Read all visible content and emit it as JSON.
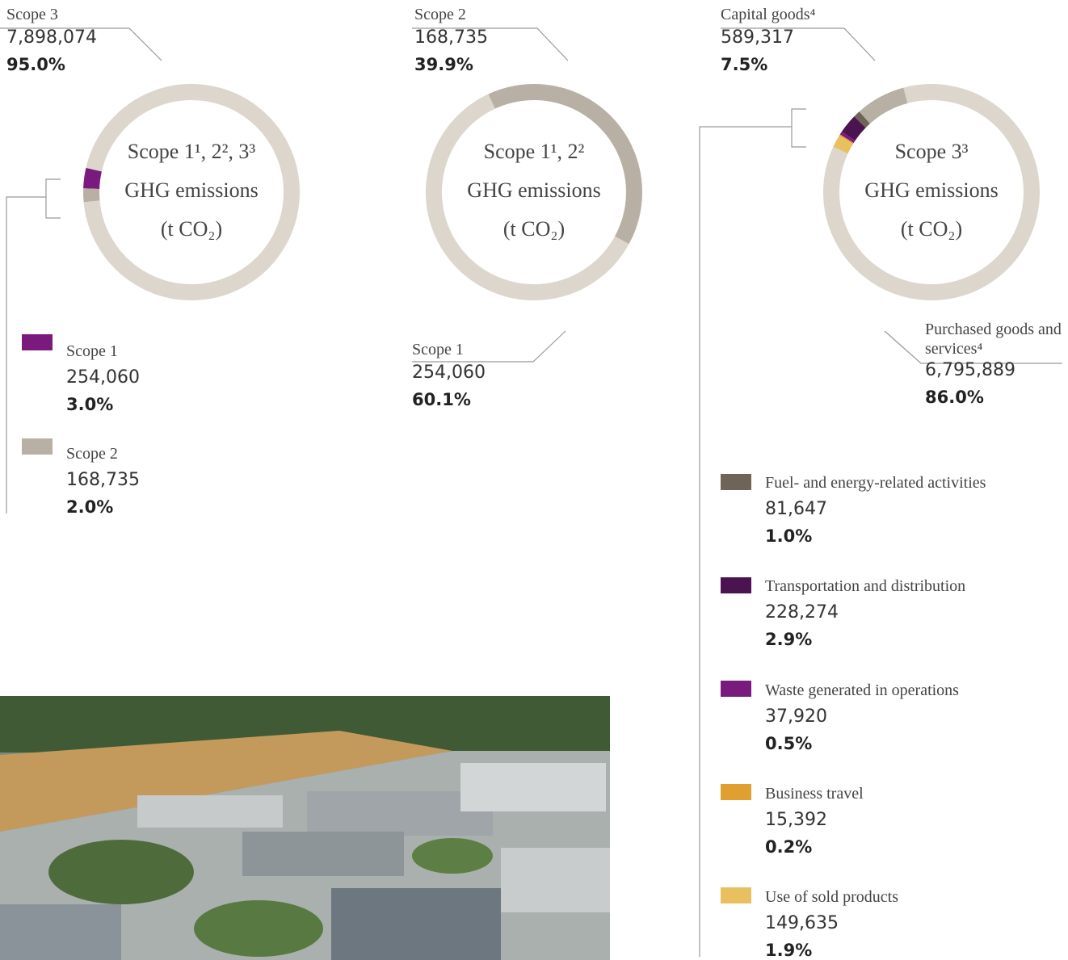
{
  "chart_data": [
    {
      "type": "pie",
      "donut": true,
      "title": "Scope 1¹, 2², 3³",
      "subtitle": "GHG emissions",
      "unit": "(t CO₂)",
      "categories": [
        "Scope 3",
        "Scope 1",
        "Scope 2"
      ],
      "values": [
        7898074,
        254060,
        168735
      ],
      "value_labels": [
        "7,898,074",
        "254,060",
        "168,735"
      ],
      "shares": [
        95.0,
        3.0,
        2.0
      ],
      "share_labels": [
        "95.0%",
        "3.0%",
        "2.0%"
      ],
      "colors": [
        "#ddd6cc",
        "#7a1a7c",
        "#b8b0a4"
      ]
    },
    {
      "type": "pie",
      "donut": true,
      "title": "Scope 1¹, 2²",
      "subtitle": "GHG emissions",
      "unit": "(t CO₂)",
      "categories": [
        "Scope 2",
        "Scope 1"
      ],
      "values": [
        168735,
        254060
      ],
      "value_labels": [
        "168,735",
        "254,060"
      ],
      "shares": [
        39.9,
        60.1
      ],
      "share_labels": [
        "39.9%",
        "60.1%"
      ],
      "colors": [
        "#b8b0a4",
        "#ddd6cc"
      ]
    },
    {
      "type": "pie",
      "donut": true,
      "title": "Scope 3³",
      "subtitle": "GHG emissions",
      "unit": "(t CO₂)",
      "categories": [
        "Capital goods⁴",
        "Fuel- and energy-related activities",
        "Transportation and distribution",
        "Waste generated in operations",
        "Business travel",
        "Use of sold products",
        "Purchased goods and services⁴"
      ],
      "values": [
        589317,
        81647,
        228274,
        37920,
        15392,
        149635,
        6795889
      ],
      "value_labels": [
        "589,317",
        "81,647",
        "228,274",
        "37,920",
        "15,392",
        "149,635",
        "6,795,889"
      ],
      "shares": [
        7.5,
        1.0,
        2.9,
        0.5,
        0.2,
        1.9,
        86.0
      ],
      "share_labels": [
        "7.5%",
        "1.0%",
        "2.9%",
        "0.5%",
        "0.2%",
        "1.9%",
        "86.0%"
      ],
      "colors": [
        "#b8b0a4",
        "#6e6558",
        "#4b1450",
        "#7b1a7e",
        "#e0a030",
        "#e8c060",
        "#ddd6cc"
      ]
    }
  ]
}
